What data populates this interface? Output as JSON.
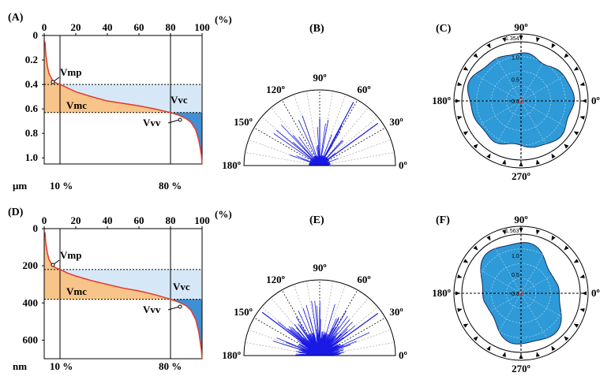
{
  "colors": {
    "curve": "#e8372a",
    "vmc_fill": "#f7c489",
    "vvc_fill": "#d6e8f8",
    "vvv_fill": "#3f8fd2",
    "rose_fill": "#2e9ad8",
    "rose_line": "#1a2a5a",
    "rays": "#1a1ae6"
  },
  "chart_data": [
    {
      "panel": "(A)",
      "type": "area",
      "x_ticks": [
        "0",
        "20",
        "40",
        "60",
        "80",
        "100"
      ],
      "x_unit": "(%)",
      "y_ticks": [
        "0",
        "0.2",
        "0.4",
        "0.6",
        "0.8",
        "1.0"
      ],
      "y_unit": "μm",
      "xlim": [
        0,
        100
      ],
      "ylim": [
        0,
        1.05
      ],
      "mr1_label": "10 %",
      "mr2_label": "80 %",
      "mr1": 10,
      "mr2": 80,
      "depth_mr1": 0.4,
      "depth_mr2": 0.63,
      "regions": [
        "Vmp",
        "Vmc",
        "Vvc",
        "Vvv"
      ],
      "curve": {
        "x": [
          0.5,
          1,
          2,
          3,
          5,
          7,
          10,
          15,
          20,
          30,
          40,
          50,
          60,
          70,
          80,
          85,
          90,
          93,
          96,
          98,
          99.5,
          100
        ],
        "y": [
          0.05,
          0.15,
          0.25,
          0.31,
          0.36,
          0.385,
          0.4,
          0.43,
          0.46,
          0.5,
          0.535,
          0.555,
          0.575,
          0.6,
          0.63,
          0.65,
          0.68,
          0.71,
          0.77,
          0.86,
          0.97,
          1.05
        ]
      }
    },
    {
      "panel": "(B)",
      "type": "polar-rays",
      "angle_labels": [
        "180º",
        "150º",
        "120º",
        "90º",
        "60º",
        "30º",
        "0º"
      ],
      "peak_directions_deg": [
        36,
        62,
        90
      ]
    },
    {
      "panel": "(C)",
      "type": "polar-area",
      "angle_labels": [
        "90º",
        "180º",
        "0º",
        "270º"
      ],
      "r_max_label": "1.354",
      "r_ticks": [
        "1.0",
        "0.5",
        "0.0"
      ],
      "r_max": 1.354
    },
    {
      "panel": "(D)",
      "type": "area",
      "x_ticks": [
        "0",
        "20",
        "40",
        "60",
        "80",
        "100"
      ],
      "x_unit": "(%)",
      "y_ticks": [
        "0",
        "200",
        "400",
        "600"
      ],
      "y_unit": "nm",
      "xlim": [
        0,
        100
      ],
      "ylim": [
        0,
        700
      ],
      "mr1_label": "10 %",
      "mr2_label": "80 %",
      "mr1": 10,
      "mr2": 80,
      "depth_mr1": 220,
      "depth_mr2": 380,
      "regions": [
        "Vmp",
        "Vmc",
        "Vvc",
        "Vvv"
      ],
      "curve": {
        "x": [
          0.5,
          1,
          2,
          3,
          5,
          7,
          10,
          15,
          20,
          30,
          40,
          50,
          60,
          70,
          80,
          85,
          90,
          93,
          96,
          98,
          99.5,
          100
        ],
        "y": [
          20,
          80,
          130,
          165,
          195,
          210,
          220,
          240,
          255,
          280,
          300,
          320,
          335,
          355,
          380,
          395,
          415,
          440,
          490,
          560,
          650,
          700
        ]
      }
    },
    {
      "panel": "(E)",
      "type": "polar-rays",
      "angle_labels": [
        "180º",
        "150º",
        "120º",
        "90º",
        "60º",
        "30º",
        "0º"
      ],
      "peak_directions_deg": [
        36,
        90,
        143
      ]
    },
    {
      "panel": "(F)",
      "type": "polar-area",
      "angle_labels": [
        "90º",
        "180º",
        "0º",
        "270º"
      ],
      "r_max_label": "1.563",
      "r_ticks": [
        "1.0",
        "0.5",
        "0.0"
      ],
      "r_max": 1.563
    }
  ]
}
